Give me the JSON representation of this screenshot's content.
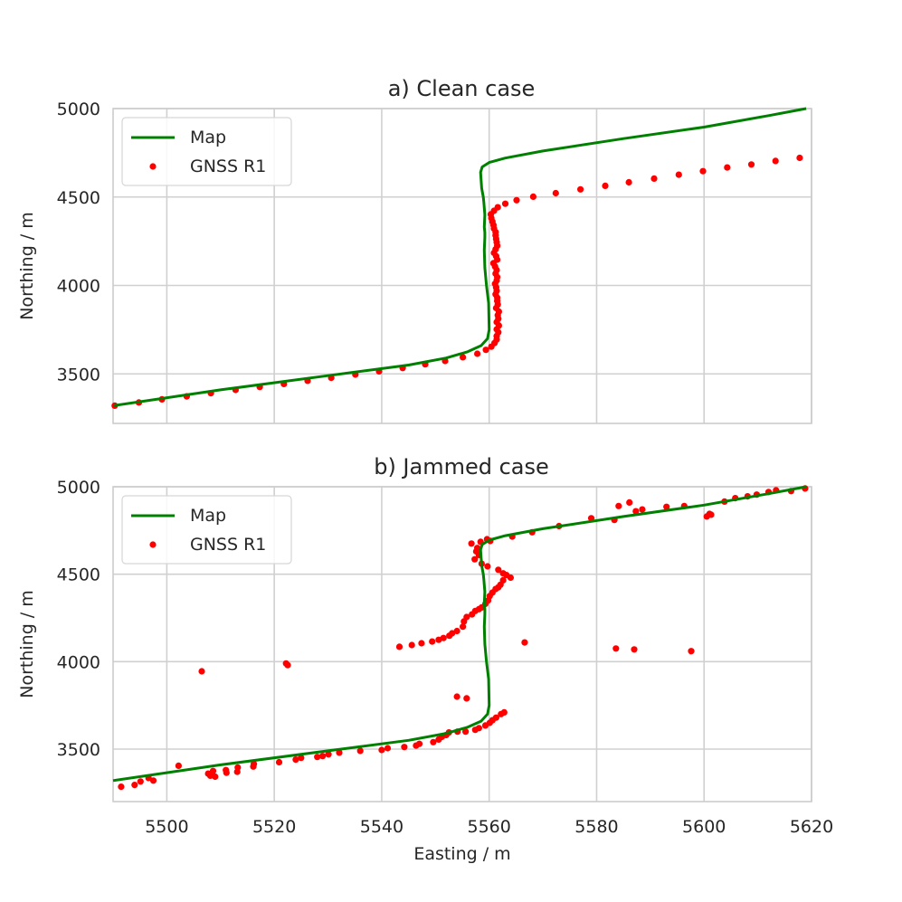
{
  "chart_data": [
    {
      "type": "line",
      "title": "a) Clean case",
      "xlabel": "",
      "ylabel": "Northing / m",
      "xlim": [
        5490,
        5620
      ],
      "ylim": [
        3220,
        5000
      ],
      "xticks": [
        "5500",
        "5520",
        "5540",
        "5560",
        "5580",
        "5600",
        "5620"
      ],
      "yticks": [
        "3500",
        "4000",
        "4500",
        "5000"
      ],
      "show_xticklabels": false,
      "grid": true,
      "legend_position": "top-left",
      "legend": [
        {
          "label": "Map",
          "kind": "line",
          "color": "#008000"
        },
        {
          "label": "GNSS R1",
          "kind": "marker",
          "color": "#ff0000"
        }
      ],
      "series": [
        {
          "name": "Map",
          "kind": "line",
          "color": "#008000",
          "x": [
            5490,
            5510,
            5530,
            5545,
            5552,
            5556,
            5558.5,
            5559.7,
            5560,
            5559.9,
            5559.5,
            5559.2,
            5559.1,
            5559.2,
            5559.2,
            5559.1,
            5559.2,
            5559,
            5558.9,
            5558.6,
            5558.4,
            5558.7,
            5560,
            5563,
            5570,
            5585,
            5600,
            5612,
            5619
          ],
          "y": [
            3320,
            3410,
            3490,
            3550,
            3590,
            3625,
            3660,
            3700,
            3750,
            3900,
            4000,
            4100,
            4200,
            4270,
            4300,
            4330,
            4400,
            4470,
            4500,
            4550,
            4640,
            4670,
            4695,
            4720,
            4760,
            4830,
            4895,
            4960,
            5000
          ]
        },
        {
          "name": "GNSS R1",
          "kind": "scatter",
          "color": "#ff0000",
          "x": [
            5490.3,
            5494.8,
            5499.1,
            5503.7,
            5508.2,
            5512.8,
            5517.3,
            5521.8,
            5526.2,
            5530.6,
            5535.1,
            5539.5,
            5543.9,
            5548.1,
            5551.8,
            5555.1,
            5557.8,
            5559.4,
            5560.4,
            5561.0,
            5561.4,
            5561.4,
            5561.7,
            5561.4,
            5561.8,
            5561.4,
            5561.7,
            5561.6,
            5561.8,
            5561.3,
            5561.6,
            5561.5,
            5561.5,
            5561.2,
            5561.4,
            5561.3,
            5561.1,
            5561.4,
            5561.5,
            5561.2,
            5561.4,
            5561.1,
            5560.8,
            5561.5,
            5561.3,
            5560.9,
            5561.2,
            5561.5,
            5561.4,
            5561.3,
            5561.2,
            5561.2,
            5560.9,
            5560.8,
            5560.6,
            5560.4,
            5560.3,
            5560.9,
            5561.6,
            5563.0,
            5565.1,
            5568.2,
            5572.4,
            5577.0,
            5581.6,
            5586.0,
            5590.7,
            5595.3,
            5599.8,
            5604.3,
            5608.8,
            5613.3,
            5617.8
          ],
          "y": [
            3320,
            3338,
            3356,
            3373,
            3391,
            3409,
            3426,
            3443,
            3461,
            3478,
            3496,
            3514,
            3533,
            3554,
            3573,
            3594,
            3614,
            3636,
            3654,
            3674,
            3694,
            3714,
            3735,
            3752,
            3773,
            3793,
            3812,
            3832,
            3852,
            3872,
            3892,
            3912,
            3931,
            3950,
            3970,
            3989,
            4009,
            4028,
            4047,
            4067,
            4087,
            4107,
            4126,
            4146,
            4165,
            4184,
            4204,
            4224,
            4244,
            4263,
            4283,
            4302,
            4322,
            4341,
            4361,
            4381,
            4402,
            4422,
            4442,
            4462,
            4482,
            4502,
            4522,
            4543,
            4563,
            4583,
            4604,
            4626,
            4646,
            4667,
            4684,
            4704,
            4721
          ]
        }
      ]
    },
    {
      "type": "line",
      "title": "b) Jammed case",
      "xlabel": "Easting / m",
      "ylabel": "Northing / m",
      "xlim": [
        5490,
        5620
      ],
      "ylim": [
        3200,
        5000
      ],
      "xticks": [
        "5500",
        "5520",
        "5540",
        "5560",
        "5580",
        "5600",
        "5620"
      ],
      "yticks": [
        "3500",
        "4000",
        "4500",
        "5000"
      ],
      "show_xticklabels": true,
      "grid": true,
      "legend_position": "top-left",
      "legend": [
        {
          "label": "Map",
          "kind": "line",
          "color": "#008000"
        },
        {
          "label": "GNSS R1",
          "kind": "marker",
          "color": "#ff0000"
        }
      ],
      "series": [
        {
          "name": "Map",
          "kind": "line",
          "color": "#008000",
          "x": [
            5490,
            5510,
            5530,
            5545,
            5552,
            5556,
            5558.5,
            5559.7,
            5560,
            5559.9,
            5559.5,
            5559.2,
            5559.1,
            5559.2,
            5559.2,
            5559.1,
            5559.2,
            5559,
            5558.9,
            5558.6,
            5558.4,
            5558.7,
            5560,
            5563,
            5570,
            5585,
            5600,
            5612,
            5619
          ],
          "y": [
            3320,
            3410,
            3490,
            3550,
            3590,
            3625,
            3660,
            3700,
            3750,
            3900,
            4000,
            4100,
            4200,
            4270,
            4300,
            4330,
            4400,
            4470,
            4500,
            4550,
            4640,
            4670,
            4695,
            4720,
            4760,
            4830,
            4895,
            4960,
            5000
          ]
        },
        {
          "name": "GNSS R1",
          "kind": "scatter",
          "color": "#ff0000",
          "x": [
            5491.5,
            5494.0,
            5495.1,
            5496.6,
            5497.5,
            5502.2,
            5507.7,
            5508.1,
            5508.6,
            5509.0,
            5511.0,
            5511.1,
            5513.2,
            5513.1,
            5516.1,
            5516.2,
            5520.9,
            5524.0,
            5525.0,
            5528.0,
            5529.0,
            5530.1,
            5532.1,
            5536.0,
            5540.0,
            5541.1,
            5544.2,
            5546.4,
            5547.0,
            5549.6,
            5550.6,
            5551.2,
            5552.0,
            5552.5,
            5554.1,
            5555.6,
            5557.4,
            5558.1,
            5559.3,
            5560.1,
            5560.6,
            5561.3,
            5562.2,
            5562.8,
            5506.5,
            5522.2,
            5522.5,
            5554.0,
            5555.8,
            5543.3,
            5545.6,
            5547.4,
            5549.4,
            5550.6,
            5551.5,
            5552.6,
            5553.1,
            5554.0,
            5555.1,
            5555.3,
            5555.8,
            5556.8,
            5557.4,
            5558.1,
            5558.6,
            5559.3,
            5559.8,
            5560.1,
            5560.6,
            5561.2,
            5561.7,
            5562.1,
            5562.6,
            5563.2,
            5564.0,
            5561.7,
            5562.6,
            5559.7,
            5558.6,
            5557.3,
            5558.1,
            5557.6,
            5557.8,
            5556.7,
            5558.4,
            5559.6,
            5560.2,
            5564.3,
            5568.0,
            5573.0,
            5579.0,
            5583.3,
            5584.1,
            5586.1,
            5587.3,
            5588.5,
            5593.0,
            5596.3,
            5600.5,
            5601.0,
            5601.3,
            5603.8,
            5605.8,
            5608.1,
            5609.8,
            5612.0,
            5613.4,
            5616.2,
            5618.8,
            5566.6,
            5583.6,
            5587.0,
            5597.6
          ],
          "y": [
            3285,
            3295,
            3315,
            3335,
            3320,
            3405,
            3360,
            3348,
            3375,
            3342,
            3380,
            3365,
            3395,
            3370,
            3400,
            3415,
            3425,
            3440,
            3450,
            3455,
            3460,
            3470,
            3480,
            3490,
            3495,
            3505,
            3512,
            3520,
            3530,
            3540,
            3555,
            3570,
            3580,
            3595,
            3600,
            3600,
            3610,
            3620,
            3635,
            3650,
            3665,
            3680,
            3700,
            3710,
            3945,
            3990,
            3980,
            3800,
            3790,
            4085,
            4095,
            4105,
            4115,
            4125,
            4135,
            4148,
            4162,
            4175,
            4200,
            4230,
            4255,
            4270,
            4290,
            4300,
            4310,
            4330,
            4350,
            4375,
            4395,
            4415,
            4425,
            4440,
            4465,
            4495,
            4480,
            4525,
            4505,
            4545,
            4560,
            4585,
            4610,
            4630,
            4650,
            4675,
            4685,
            4700,
            4690,
            4715,
            4740,
            4775,
            4820,
            4810,
            4890,
            4910,
            4860,
            4870,
            4885,
            4890,
            4830,
            4845,
            4840,
            4915,
            4935,
            4945,
            4955,
            4970,
            4980,
            4975,
            4990,
            4110,
            4075,
            4070,
            4060
          ]
        }
      ]
    }
  ]
}
